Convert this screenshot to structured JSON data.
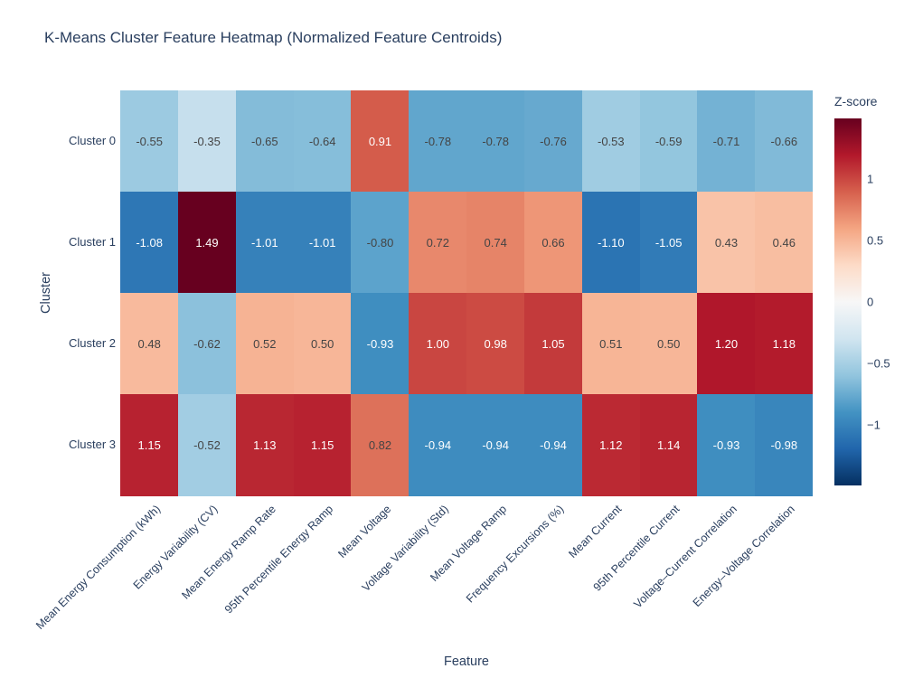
{
  "title": "K-Means Cluster Feature Heatmap (Normalized Feature Centroids)",
  "colors": {
    "background": "#ffffff",
    "title_text": "#2a3f5f",
    "axis_text": "#2a3f5f",
    "cell_text_dark": "#444444",
    "cell_text_light": "#ffffff"
  },
  "chart_data": {
    "type": "heatmap",
    "title": "K-Means Cluster Feature Heatmap (Normalized Feature Centroids)",
    "xlabel": "Feature",
    "ylabel": "Cluster",
    "x_categories": [
      "Mean Energy Consumption (kWh)",
      "Energy Variability (CV)",
      "Mean Energy Ramp Rate",
      "95th Percentile Energy Ramp",
      "Mean Voltage",
      "Voltage Variability (Std)",
      "Mean Voltage Ramp",
      "Frequency Excursions (%)",
      "Mean Current",
      "95th Percentile Current",
      "Voltage–Current Correlation",
      "Energy–Voltage Correlation"
    ],
    "y_categories": [
      "Cluster 0",
      "Cluster 1",
      "Cluster 2",
      "Cluster 3"
    ],
    "values": [
      [
        -0.55,
        -0.35,
        -0.65,
        -0.64,
        0.91,
        -0.78,
        -0.78,
        -0.76,
        -0.53,
        -0.59,
        -0.71,
        -0.66
      ],
      [
        -1.08,
        1.49,
        -1.01,
        -1.01,
        -0.8,
        0.72,
        0.74,
        0.66,
        -1.1,
        -1.05,
        0.43,
        0.46
      ],
      [
        0.48,
        -0.62,
        0.52,
        0.5,
        -0.93,
        1.0,
        0.98,
        1.05,
        0.51,
        0.5,
        1.2,
        1.18
      ],
      [
        1.15,
        -0.52,
        1.13,
        1.15,
        0.82,
        -0.94,
        -0.94,
        -0.94,
        1.12,
        1.14,
        -0.93,
        -0.98
      ]
    ],
    "value_format": "2dp",
    "zmin": -1.49,
    "zmax": 1.49,
    "grid": false,
    "colorbar": {
      "title": "Z-score",
      "position": "right",
      "ticks": [
        {
          "value": 1,
          "label": "1"
        },
        {
          "value": 0.5,
          "label": "0.5"
        },
        {
          "value": 0,
          "label": "0"
        },
        {
          "value": -0.5,
          "label": "−0.5"
        },
        {
          "value": -1,
          "label": "−1"
        }
      ]
    },
    "colorscale_name": "RdBu_r",
    "colorscale": [
      [
        0.0,
        "#053061"
      ],
      [
        0.1,
        "#2166ac"
      ],
      [
        0.2,
        "#4393c3"
      ],
      [
        0.3,
        "#92c5de"
      ],
      [
        0.4,
        "#d1e5f0"
      ],
      [
        0.5,
        "#f7f7f7"
      ],
      [
        0.6,
        "#fddbc7"
      ],
      [
        0.7,
        "#f4a582"
      ],
      [
        0.8,
        "#d6604d"
      ],
      [
        0.9,
        "#b2182b"
      ],
      [
        1.0,
        "#67001f"
      ]
    ]
  }
}
